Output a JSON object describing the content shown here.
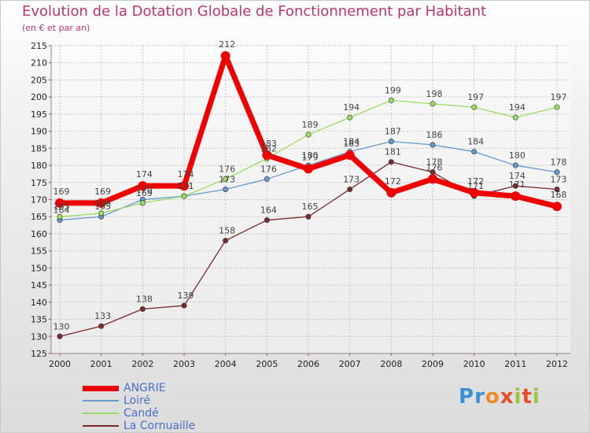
{
  "header": {
    "title": "Evolution de la Dotation Globale de Fonctionnement par Habitant",
    "subtitle": "(en € et par an)"
  },
  "brand": {
    "text": "Proxiti"
  },
  "chart_data": {
    "type": "line",
    "title": "Evolution de la Dotation Globale de Fonctionnement par Habitant",
    "subtitle": "(en € et par an)",
    "xlabel": "",
    "ylabel": "",
    "ylim": [
      125,
      215
    ],
    "y_ticks": [
      125,
      130,
      135,
      140,
      145,
      150,
      155,
      160,
      165,
      170,
      175,
      180,
      185,
      190,
      195,
      200,
      205,
      210,
      215
    ],
    "categories": [
      "2000",
      "2001",
      "2002",
      "2003",
      "2004",
      "2005",
      "2006",
      "2007",
      "2008",
      "2009",
      "2010",
      "2011",
      "2012"
    ],
    "grid": true,
    "legend_position": "bottom-left",
    "series": [
      {
        "name": "ANGRIE",
        "color": "#ee0000",
        "values": [
          169,
          169,
          174,
          174,
          212,
          183,
          179,
          183,
          172,
          176,
          172,
          171,
          168
        ]
      },
      {
        "name": "Loiré",
        "color": "#6699cc",
        "values": [
          164,
          165,
          170,
          171,
          173,
          176,
          180,
          184,
          187,
          186,
          184,
          180,
          178
        ]
      },
      {
        "name": "Candé",
        "color": "#99dd66",
        "values": [
          165,
          166,
          169,
          171,
          176,
          182,
          189,
          194,
          199,
          198,
          197,
          194,
          197
        ]
      },
      {
        "name": "La Cornuaille",
        "color": "#7a2a2a",
        "values": [
          130,
          133,
          138,
          139,
          158,
          164,
          165,
          173,
          181,
          178,
          171,
          174,
          173
        ]
      }
    ]
  }
}
